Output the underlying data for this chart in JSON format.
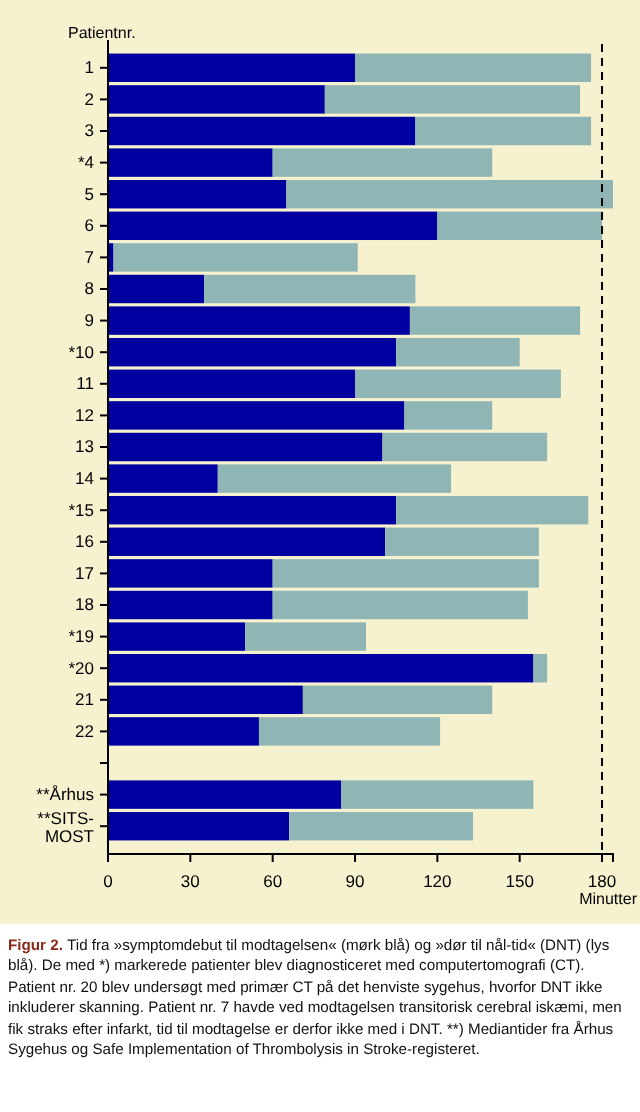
{
  "chart_data": {
    "type": "bar",
    "orientation": "horizontal",
    "stacked": true,
    "title": "Figur 2.",
    "ylabel": "Patientnr.",
    "xlabel": "Minutter",
    "categories": [
      "1",
      "2",
      "3",
      "*4",
      "5",
      "6",
      "7",
      "8",
      "9",
      "*10",
      "11",
      "12",
      "13",
      "14",
      "*15",
      "16",
      "17",
      "18",
      "*19",
      "*20",
      "21",
      "22",
      null,
      "**Århus",
      "**SITS-MOST"
    ],
    "series": [
      {
        "color": "#0000a0",
        "values": [
          90,
          79,
          112,
          60,
          65,
          120,
          2,
          35,
          110,
          105,
          90,
          108,
          100,
          40,
          105,
          101,
          60,
          60,
          50,
          155,
          71,
          55,
          null,
          85,
          66
        ]
      },
      {
        "color": "#8fb5b5",
        "values": [
          86,
          93,
          64,
          80,
          119,
          60,
          89,
          77,
          62,
          45,
          75,
          32,
          60,
          85,
          70,
          56,
          97,
          93,
          44,
          5,
          69,
          66,
          null,
          70,
          67
        ]
      }
    ],
    "xlim": [
      0,
      184
    ],
    "xticks": [
      0,
      30,
      60,
      90,
      120,
      150,
      180
    ],
    "ref_lines": [
      {
        "axis": "x",
        "value": 180,
        "line_style": "dashed",
        "color": "#000000"
      }
    ],
    "annotations": [
      "Tid fra »symptomdebut til modtagelsen« (mørk blå) og »dør til nål-tid« (DNT) (lys blå). De med *) markerede patienter blev diagnosticeret med computertomografi (CT). Patient nr. 20 blev undersøgt med primær CT på det henviste sygehus, hvorfor DNT ikke inkluderer skanning. Patient nr. 7 havde ved modtagelsen transitorisk cerebral iskæmi, men fik straks efter infarkt, tid til modtagelse er derfor ikke med i DNT. **) Mediantider fra Århus Sygehus og Safe Implementation of Thrombolysis in Stroke-registeret."
    ]
  }
}
